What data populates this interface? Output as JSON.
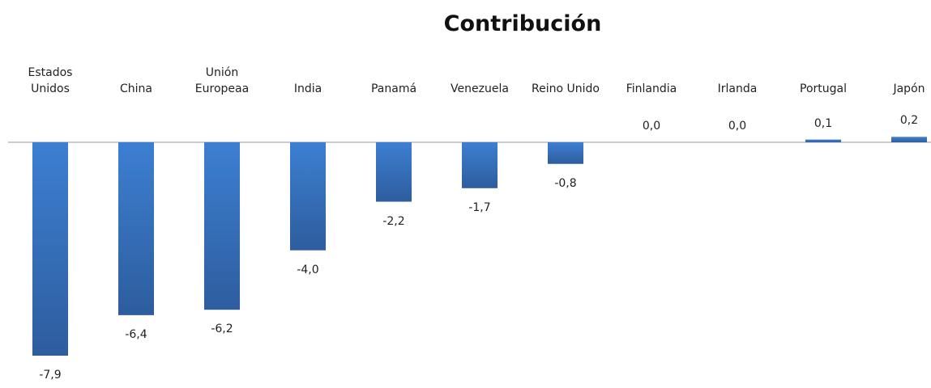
{
  "chart_data": {
    "type": "bar",
    "title": "Contribución",
    "categories": [
      "Estados\nUnidos",
      "China",
      "Unión\nEuropeaa",
      "India",
      "Panamá",
      "Venezuela",
      "Reino Unido",
      "Finlandia",
      "Irlanda",
      "Portugal",
      "Japón"
    ],
    "values": [
      -7.9,
      -6.4,
      -6.2,
      -4.0,
      -2.2,
      -1.7,
      -0.8,
      0.0,
      0.0,
      0.1,
      0.2
    ],
    "value_labels": [
      "-7,9",
      "-6,4",
      "-6,2",
      "-4,0",
      "-2,2",
      "-1,7",
      "-0,8",
      "0,0",
      "0,0",
      "0,1",
      "0,2"
    ],
    "color": "#3a78c8"
  }
}
